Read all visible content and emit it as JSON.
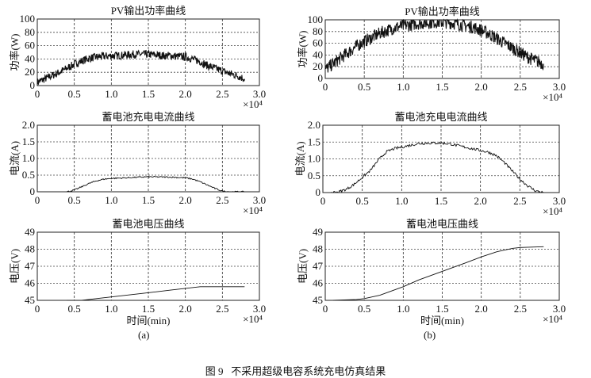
{
  "figure_caption": "图 9   不采用超级电容系统充电仿真结果",
  "chart_data": [
    {
      "panel": "(a)",
      "type": "line",
      "title": "PV输出功率曲线",
      "ylabel": "功率(W)",
      "xlabel": "",
      "x_multiplier": "×10⁴",
      "xlim": [
        0,
        3
      ],
      "ylim": [
        0,
        100
      ],
      "xticks": [
        "0",
        "0.5",
        "1.0",
        "1.5",
        "2.0",
        "2.5",
        "3.0"
      ],
      "yticks": [
        "0",
        "20",
        "40",
        "60",
        "80",
        "100"
      ],
      "grid": true,
      "noise_amplitude": 6,
      "x": [
        0,
        0.1,
        0.2,
        0.3,
        0.4,
        0.5,
        0.6,
        0.7,
        0.8,
        0.9,
        1.0,
        1.1,
        1.2,
        1.3,
        1.4,
        1.5,
        1.6,
        1.7,
        1.8,
        1.9,
        2.0,
        2.1,
        2.2,
        2.3,
        2.4,
        2.5,
        2.6,
        2.7,
        2.8
      ],
      "y": [
        5,
        10,
        15,
        20,
        26,
        32,
        37,
        41,
        43,
        44,
        45,
        45,
        46,
        47,
        47,
        47,
        46,
        45,
        45,
        44,
        43,
        40,
        36,
        30,
        26,
        22,
        18,
        15,
        10
      ]
    },
    {
      "panel": "(b)",
      "type": "line",
      "title": "PV输出功率曲线",
      "ylabel": "功率(W)",
      "xlabel": "",
      "x_multiplier": "×10⁴",
      "xlim": [
        0,
        3
      ],
      "ylim": [
        0,
        100
      ],
      "xticks": [
        "0",
        "0.5",
        "1.0",
        "1.5",
        "2.0",
        "2.5",
        "3.0"
      ],
      "yticks": [
        "0",
        "20",
        "40",
        "60",
        "80",
        "100"
      ],
      "grid": true,
      "noise_amplitude": 11,
      "x": [
        0,
        0.1,
        0.2,
        0.3,
        0.4,
        0.5,
        0.6,
        0.7,
        0.8,
        0.9,
        1.0,
        1.1,
        1.2,
        1.3,
        1.4,
        1.5,
        1.6,
        1.7,
        1.8,
        1.9,
        2.0,
        2.1,
        2.2,
        2.3,
        2.4,
        2.5,
        2.6,
        2.7,
        2.8
      ],
      "y": [
        15,
        25,
        35,
        45,
        55,
        63,
        70,
        77,
        82,
        87,
        90,
        92,
        94,
        95,
        96,
        96,
        95,
        93,
        90,
        87,
        82,
        76,
        68,
        60,
        52,
        44,
        36,
        30,
        25
      ]
    },
    {
      "panel": "(a)",
      "type": "line",
      "title": "蓄电池充电电流曲线",
      "ylabel": "电流(A)",
      "xlabel": "",
      "x_multiplier": "×10⁴",
      "xlim": [
        0,
        3
      ],
      "ylim": [
        0,
        2
      ],
      "xticks": [
        "0",
        "0.5",
        "1.0",
        "1.5",
        "2.0",
        "2.5",
        "3.0"
      ],
      "yticks": [
        "0",
        "0.5",
        "1.0",
        "1.5",
        "2.0"
      ],
      "grid": true,
      "noise_amplitude": 0.02,
      "x": [
        0.4,
        0.5,
        0.6,
        0.7,
        0.8,
        0.9,
        1.0,
        1.2,
        1.5,
        1.8,
        2.0,
        2.1,
        2.2,
        2.3,
        2.4,
        2.5,
        2.6,
        2.8
      ],
      "y": [
        0,
        0.05,
        0.15,
        0.25,
        0.33,
        0.38,
        0.4,
        0.42,
        0.45,
        0.44,
        0.42,
        0.38,
        0.3,
        0.2,
        0.1,
        0.02,
        0,
        0
      ]
    },
    {
      "panel": "(b)",
      "type": "line",
      "title": "蓄电池充电电流曲线",
      "ylabel": "电流(A)",
      "xlabel": "",
      "x_multiplier": "×10⁴",
      "xlim": [
        0,
        3
      ],
      "ylim": [
        0,
        2
      ],
      "xticks": [
        "0",
        "0.5",
        "1.0",
        "1.5",
        "2.0",
        "2.5",
        "3.0"
      ],
      "yticks": [
        "0",
        "0.5",
        "1.0",
        "1.5",
        "2.0"
      ],
      "grid": true,
      "noise_amplitude": 0.04,
      "x": [
        0.1,
        0.2,
        0.3,
        0.4,
        0.5,
        0.6,
        0.7,
        0.8,
        0.9,
        1.0,
        1.1,
        1.2,
        1.3,
        1.4,
        1.5,
        1.6,
        1.7,
        1.8,
        1.9,
        2.0,
        2.1,
        2.2,
        2.3,
        2.4,
        2.5,
        2.6,
        2.7,
        2.8
      ],
      "y": [
        0,
        0.02,
        0.1,
        0.25,
        0.45,
        0.65,
        0.95,
        1.2,
        1.3,
        1.35,
        1.4,
        1.45,
        1.47,
        1.47,
        1.47,
        1.45,
        1.4,
        1.35,
        1.3,
        1.25,
        1.2,
        1.1,
        0.9,
        0.65,
        0.4,
        0.2,
        0.05,
        0
      ]
    },
    {
      "panel": "(a)",
      "type": "line",
      "title": "蓄电池电压曲线",
      "ylabel": "电压(V)",
      "xlabel": "时间(min)",
      "x_multiplier": "×10⁴",
      "xlim": [
        0,
        3
      ],
      "ylim": [
        45,
        49
      ],
      "xticks": [
        "0",
        "0.5",
        "1.0",
        "1.5",
        "2.0",
        "2.5",
        "3.0"
      ],
      "yticks": [
        "45",
        "46",
        "47",
        "48",
        "49"
      ],
      "grid": true,
      "noise_amplitude": 0,
      "x": [
        0.4,
        0.6,
        0.8,
        1.0,
        1.2,
        1.4,
        1.6,
        1.8,
        2.0,
        2.2,
        2.8
      ],
      "y": [
        45.0,
        45.0,
        45.1,
        45.2,
        45.3,
        45.4,
        45.5,
        45.6,
        45.7,
        45.8,
        45.8
      ]
    },
    {
      "panel": "(b)",
      "type": "line",
      "title": "蓄电池电压曲线",
      "ylabel": "电压(V)",
      "xlabel": "时间(min)",
      "x_multiplier": "×10⁴",
      "xlim": [
        0,
        3
      ],
      "ylim": [
        45,
        49
      ],
      "xticks": [
        "0",
        "0.5",
        "1.0",
        "1.5",
        "2.0",
        "2.5",
        "3.0"
      ],
      "yticks": [
        "45",
        "46",
        "47",
        "48",
        "49"
      ],
      "grid": true,
      "noise_amplitude": 0,
      "x": [
        0.1,
        0.4,
        0.5,
        0.7,
        1.0,
        1.2,
        1.5,
        1.8,
        2.0,
        2.2,
        2.4,
        2.5,
        2.8
      ],
      "y": [
        45.0,
        45.05,
        45.1,
        45.3,
        45.8,
        46.2,
        46.7,
        47.2,
        47.55,
        47.85,
        48.05,
        48.1,
        48.15
      ]
    }
  ]
}
